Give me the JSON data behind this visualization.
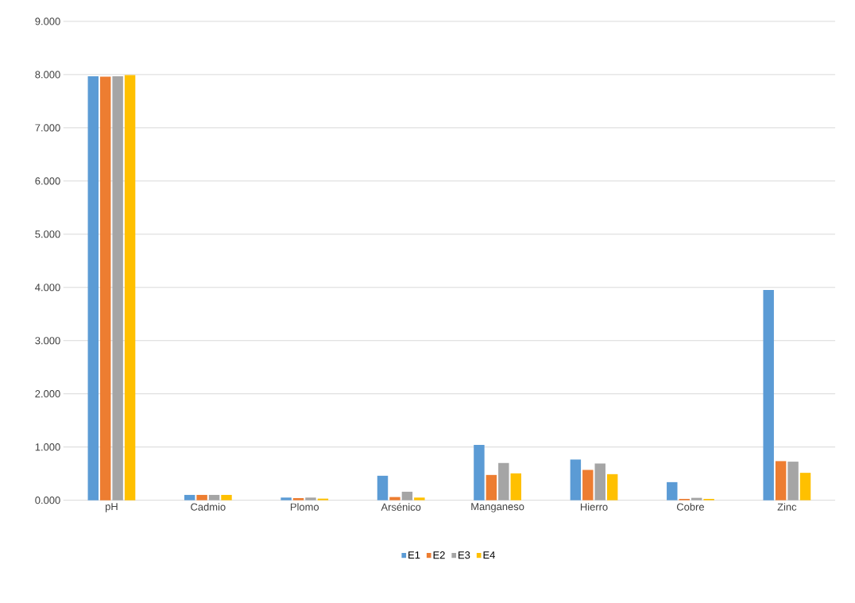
{
  "chart_data": {
    "type": "bar",
    "categories": [
      "pH",
      "Cadmio",
      "Plomo",
      "Arsénico",
      "Manganeso",
      "Hierro",
      "Cobre",
      "Zinc"
    ],
    "series": [
      {
        "name": "E1",
        "color": "#5b9bd5",
        "values": [
          7.97,
          0.1,
          0.05,
          0.46,
          1.04,
          0.765,
          0.34,
          3.95
        ]
      },
      {
        "name": "E2",
        "color": "#ed7d31",
        "values": [
          7.96,
          0.1,
          0.04,
          0.06,
          0.475,
          0.57,
          0.025,
          0.735
        ]
      },
      {
        "name": "E3",
        "color": "#a5a5a5",
        "values": [
          7.97,
          0.1,
          0.05,
          0.16,
          0.7,
          0.69,
          0.045,
          0.725
        ]
      },
      {
        "name": "E4",
        "color": "#ffc000",
        "values": [
          7.99,
          0.1,
          0.03,
          0.05,
          0.505,
          0.49,
          0.025,
          0.515
        ]
      }
    ],
    "ylim": [
      0,
      9
    ],
    "yticks": [
      {
        "value": 0,
        "label": "0.000"
      },
      {
        "value": 1,
        "label": "1.000"
      },
      {
        "value": 2,
        "label": "2.000"
      },
      {
        "value": 3,
        "label": "3.000"
      },
      {
        "value": 4,
        "label": "4.000"
      },
      {
        "value": 5,
        "label": "5.000"
      },
      {
        "value": 6,
        "label": "6.000"
      },
      {
        "value": 7,
        "label": "7.000"
      },
      {
        "value": 8,
        "label": "8.000"
      },
      {
        "value": 9,
        "label": "9.000"
      }
    ],
    "grid": "y",
    "legend": "bottom"
  }
}
